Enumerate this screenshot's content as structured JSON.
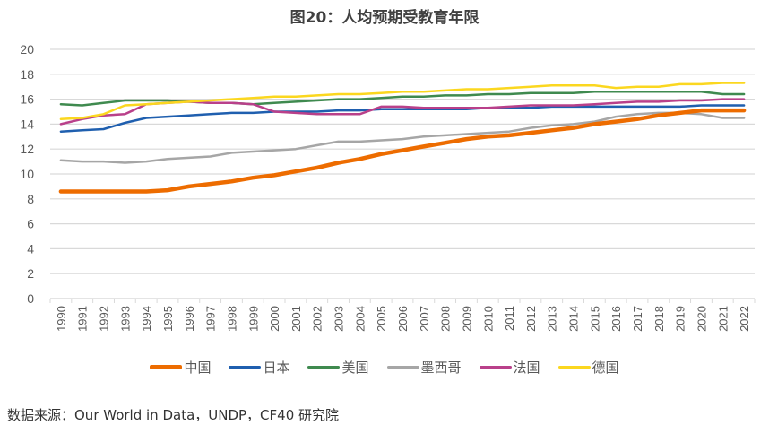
{
  "title": "图20：人均预期受教育年限",
  "source": "数据来源：Our World in Data，UNDP，CF40 研究院",
  "chart_data": {
    "type": "line",
    "title": "图20：人均预期受教育年限",
    "xlabel": "",
    "ylabel": "",
    "ylim": [
      0,
      20
    ],
    "yticks": [
      0,
      2,
      4,
      6,
      8,
      10,
      12,
      14,
      16,
      18,
      20
    ],
    "grid": true,
    "legend_position": "bottom",
    "x": [
      "1990",
      "1991",
      "1992",
      "1993",
      "1994",
      "1995",
      "1996",
      "1997",
      "1998",
      "1999",
      "2000",
      "2001",
      "2002",
      "2003",
      "2004",
      "2005",
      "2006",
      "2007",
      "2008",
      "2009",
      "2010",
      "2011",
      "2012",
      "2013",
      "2014",
      "2015",
      "2016",
      "2017",
      "2018",
      "2019",
      "2020",
      "2021",
      "2022"
    ],
    "series": [
      {
        "name": "中国",
        "color": "#ED6C00",
        "width": 4.5,
        "values": [
          8.6,
          8.6,
          8.6,
          8.6,
          8.6,
          8.7,
          9.0,
          9.2,
          9.4,
          9.7,
          9.9,
          10.2,
          10.5,
          10.9,
          11.2,
          11.6,
          11.9,
          12.2,
          12.5,
          12.8,
          13.0,
          13.1,
          13.3,
          13.5,
          13.7,
          14.0,
          14.2,
          14.4,
          14.7,
          14.9,
          15.1,
          15.1,
          15.1
        ]
      },
      {
        "name": "日本",
        "color": "#1F5FAF",
        "width": 2.5,
        "values": [
          13.4,
          13.5,
          13.6,
          14.1,
          14.5,
          14.6,
          14.7,
          14.8,
          14.9,
          14.9,
          15.0,
          15.0,
          15.0,
          15.1,
          15.1,
          15.2,
          15.2,
          15.2,
          15.2,
          15.2,
          15.3,
          15.3,
          15.3,
          15.4,
          15.4,
          15.4,
          15.4,
          15.4,
          15.4,
          15.4,
          15.5,
          15.5,
          15.5
        ]
      },
      {
        "name": "美国",
        "color": "#3F8A4F",
        "width": 2.5,
        "values": [
          15.6,
          15.5,
          15.7,
          15.9,
          15.9,
          15.9,
          15.8,
          15.7,
          15.7,
          15.6,
          15.7,
          15.8,
          15.9,
          16.0,
          16.0,
          16.1,
          16.2,
          16.2,
          16.3,
          16.3,
          16.4,
          16.4,
          16.5,
          16.5,
          16.5,
          16.6,
          16.6,
          16.6,
          16.6,
          16.6,
          16.6,
          16.4,
          16.4
        ]
      },
      {
        "name": "墨西哥",
        "color": "#A6A6A6",
        "width": 2.5,
        "values": [
          11.1,
          11.0,
          11.0,
          10.9,
          11.0,
          11.2,
          11.3,
          11.4,
          11.7,
          11.8,
          11.9,
          12.0,
          12.3,
          12.6,
          12.6,
          12.7,
          12.8,
          13.0,
          13.1,
          13.2,
          13.3,
          13.4,
          13.7,
          13.9,
          14.0,
          14.2,
          14.6,
          14.8,
          14.9,
          14.9,
          14.8,
          14.5,
          14.5
        ]
      },
      {
        "name": "法国",
        "color": "#B9408A",
        "width": 2.5,
        "values": [
          14.0,
          14.4,
          14.7,
          14.8,
          15.6,
          15.7,
          15.8,
          15.7,
          15.7,
          15.6,
          15.0,
          14.9,
          14.8,
          14.8,
          14.8,
          15.4,
          15.4,
          15.3,
          15.3,
          15.3,
          15.3,
          15.4,
          15.5,
          15.5,
          15.5,
          15.6,
          15.7,
          15.8,
          15.8,
          15.9,
          15.9,
          16.0,
          16.0
        ]
      },
      {
        "name": "德国",
        "color": "#FBD71F",
        "width": 2.5,
        "values": [
          14.4,
          14.5,
          14.8,
          15.5,
          15.6,
          15.7,
          15.8,
          15.9,
          16.0,
          16.1,
          16.2,
          16.2,
          16.3,
          16.4,
          16.4,
          16.5,
          16.6,
          16.6,
          16.7,
          16.8,
          16.8,
          16.9,
          17.0,
          17.1,
          17.1,
          17.1,
          16.9,
          17.0,
          17.0,
          17.2,
          17.2,
          17.3,
          17.3
        ]
      }
    ]
  },
  "legend": {
    "items": [
      {
        "label": "中国",
        "color": "#ED6C00"
      },
      {
        "label": "日本",
        "color": "#1F5FAF"
      },
      {
        "label": "美国",
        "color": "#3F8A4F"
      },
      {
        "label": "墨西哥",
        "color": "#A6A6A6"
      },
      {
        "label": "法国",
        "color": "#B9408A"
      },
      {
        "label": "德国",
        "color": "#FBD71F"
      }
    ]
  }
}
